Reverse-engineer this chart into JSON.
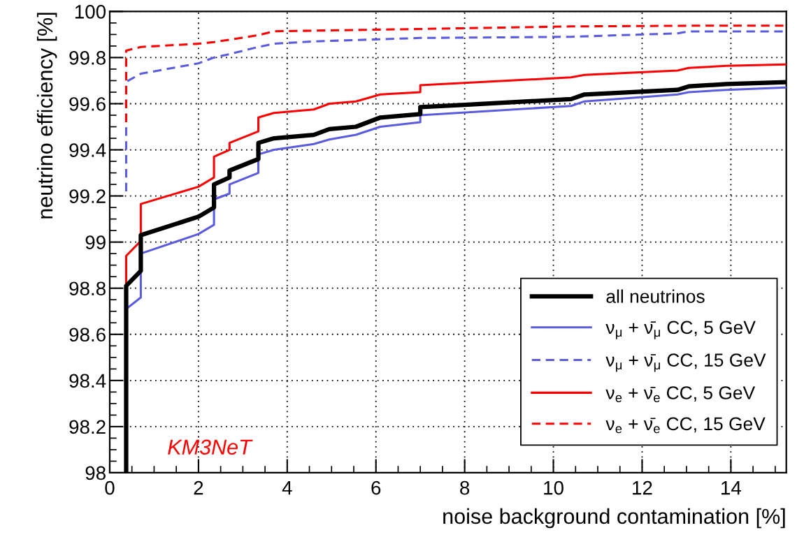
{
  "chart_data": {
    "type": "line",
    "xlabel": "noise background contamination [%]",
    "ylabel": "neutrino efficiency [%]",
    "xlim": [
      0,
      15.25
    ],
    "ylim": [
      98,
      100
    ],
    "xticks": [
      0,
      2,
      4,
      6,
      8,
      10,
      12,
      14
    ],
    "yticks": [
      98,
      98.2,
      98.4,
      98.6,
      98.8,
      99,
      99.2,
      99.4,
      99.6,
      99.8,
      100
    ],
    "grid": true,
    "legend": "bottom right",
    "marker": "none",
    "annotations": [
      "KM3NeT"
    ],
    "series": [
      {
        "name": "all neutrinos",
        "color": "#000000",
        "line_style": "solid",
        "x": [
          0.37,
          0.37,
          0.7,
          0.7,
          2.0,
          2.35,
          2.35,
          2.7,
          2.7,
          3.35,
          3.35,
          3.7,
          4.6,
          4.95,
          5.55,
          6.1,
          7.0,
          7.0,
          8.0,
          10.4,
          10.7,
          12.8,
          13.05,
          13.9,
          15.24
        ],
        "values": [
          98.0,
          98.81,
          98.875,
          99.03,
          99.11,
          99.15,
          99.25,
          99.28,
          99.31,
          99.36,
          99.43,
          99.45,
          99.465,
          99.49,
          99.5,
          99.54,
          99.555,
          99.585,
          99.595,
          99.62,
          99.64,
          99.66,
          99.675,
          99.685,
          99.693
        ]
      },
      {
        "name": "ν$_{μ}$ + ν̄$_{μ}$ CC, 5 GeV",
        "color": "#5b5be0",
        "line_style": "solid",
        "x": [
          0.37,
          0.7,
          0.7,
          2.0,
          2.35,
          2.35,
          2.7,
          2.7,
          3.35,
          3.35,
          3.7,
          4.6,
          4.95,
          5.55,
          6.1,
          7.0,
          7.0,
          10.4,
          10.7,
          12.8,
          13.05,
          13.9,
          15.24
        ],
        "values": [
          98.71,
          98.76,
          98.95,
          99.035,
          99.075,
          99.185,
          99.21,
          99.25,
          99.3,
          99.38,
          99.4,
          99.425,
          99.445,
          99.465,
          99.5,
          99.52,
          99.55,
          99.59,
          99.61,
          99.64,
          99.65,
          99.66,
          99.67
        ]
      },
      {
        "name": "ν$_{μ}$ + ν̄$_{μ}$ CC, 15 GeV",
        "color": "#5b5be0",
        "line_style": "dashed",
        "x": [
          0.37,
          0.37,
          0.7,
          2.0,
          2.35,
          2.7,
          3.35,
          3.7,
          4.6,
          7.0,
          10.4,
          12.8,
          13.05,
          15.24
        ],
        "values": [
          99.22,
          99.695,
          99.73,
          99.775,
          99.8,
          99.815,
          99.846,
          99.86,
          99.87,
          99.885,
          99.89,
          99.905,
          99.913,
          99.913
        ]
      },
      {
        "name": "ν$_{e}$ + ν̄$_{e}$ CC, 5 GeV",
        "color": "#ff0000",
        "line_style": "solid",
        "x": [
          0.37,
          0.37,
          0.7,
          0.7,
          2.0,
          2.35,
          2.35,
          2.7,
          2.7,
          3.35,
          3.35,
          3.7,
          4.6,
          4.95,
          5.55,
          6.1,
          7.0,
          7.0,
          10.4,
          10.7,
          12.8,
          13.05,
          13.9,
          15.24
        ],
        "values": [
          98.82,
          98.94,
          99.005,
          99.165,
          99.24,
          99.28,
          99.37,
          99.4,
          99.43,
          99.48,
          99.54,
          99.56,
          99.575,
          99.6,
          99.61,
          99.64,
          99.65,
          99.68,
          99.714,
          99.725,
          99.744,
          99.755,
          99.764,
          99.77
        ]
      },
      {
        "name": "ν$_{e}$ + ν̄$_{e}$ CC, 15 GeV",
        "color": "#ff0000",
        "line_style": "dashed",
        "x": [
          0.37,
          0.37,
          0.7,
          2.0,
          2.35,
          3.35,
          3.7,
          7.0,
          10.4,
          13.05,
          15.24
        ],
        "values": [
          99.52,
          99.83,
          99.846,
          99.86,
          99.867,
          99.897,
          99.914,
          99.924,
          99.935,
          99.938,
          99.938
        ]
      }
    ]
  }
}
